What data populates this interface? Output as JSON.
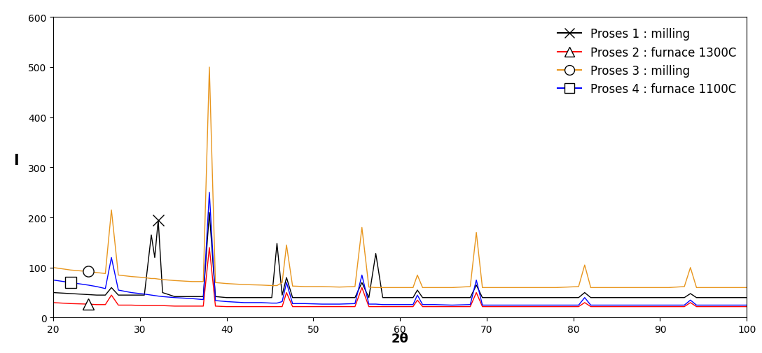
{
  "chart_data": {
    "type": "line",
    "x_label": "2θ",
    "y_label": "I",
    "x": [
      20,
      22,
      24,
      25,
      26,
      26.7,
      27.5,
      29,
      30.5,
      31.3,
      31.7,
      32.1,
      32.6,
      34,
      36,
      37.3,
      38,
      38.7,
      40,
      42,
      44,
      45.2,
      45.8,
      46.4,
      46.9,
      47.6,
      49,
      51,
      53,
      54.8,
      55.6,
      56.4,
      57.2,
      58,
      60,
      61.5,
      62,
      62.6,
      64,
      66,
      68.1,
      68.8,
      69.5,
      72,
      75,
      78,
      80.6,
      81.3,
      82,
      85,
      88,
      91,
      92.8,
      93.5,
      94.2,
      97,
      100
    ],
    "series": [
      {
        "name": "Proses 1 : milling",
        "color": "#000000",
        "marker": "x",
        "values": [
          50,
          48,
          46,
          45,
          45,
          60,
          45,
          45,
          45,
          165,
          120,
          195,
          50,
          42,
          42,
          42,
          210,
          42,
          40,
          40,
          40,
          40,
          148,
          45,
          80,
          40,
          40,
          40,
          40,
          40,
          70,
          40,
          128,
          40,
          40,
          40,
          55,
          40,
          40,
          40,
          40,
          65,
          40,
          40,
          40,
          40,
          40,
          50,
          40,
          40,
          40,
          40,
          40,
          48,
          40,
          40,
          40
        ]
      },
      {
        "name": "Proses 2 : furnace 1300C",
        "color": "#ff0000",
        "marker": "triangle",
        "values": [
          30,
          28,
          27,
          26,
          26,
          45,
          25,
          25,
          24,
          24,
          24,
          24,
          24,
          23,
          23,
          23,
          140,
          23,
          22,
          22,
          22,
          22,
          22,
          22,
          50,
          22,
          22,
          22,
          22,
          22,
          60,
          22,
          22,
          22,
          22,
          22,
          35,
          22,
          22,
          22,
          22,
          50,
          22,
          22,
          22,
          22,
          22,
          30,
          22,
          22,
          22,
          22,
          22,
          30,
          22,
          22,
          22
        ]
      },
      {
        "name": "Proses 3 : milling",
        "color": "#e8961e",
        "marker": "circle",
        "values": [
          100,
          95,
          92,
          90,
          88,
          215,
          85,
          82,
          80,
          78,
          78,
          77,
          76,
          74,
          72,
          72,
          500,
          70,
          68,
          66,
          65,
          64,
          64,
          70,
          145,
          63,
          62,
          62,
          61,
          62,
          180,
          61,
          60,
          60,
          60,
          60,
          85,
          60,
          60,
          60,
          62,
          170,
          60,
          60,
          60,
          60,
          62,
          105,
          60,
          60,
          60,
          60,
          62,
          100,
          60,
          60,
          60
        ]
      },
      {
        "name": "Proses 4 : furnace 1100C",
        "color": "#0000ff",
        "marker": "square",
        "values": [
          75,
          70,
          65,
          62,
          58,
          120,
          55,
          50,
          47,
          45,
          44,
          43,
          42,
          40,
          38,
          36,
          250,
          34,
          32,
          30,
          30,
          29,
          29,
          32,
          70,
          28,
          28,
          27,
          27,
          28,
          85,
          27,
          27,
          26,
          26,
          26,
          45,
          26,
          26,
          25,
          26,
          75,
          25,
          25,
          25,
          25,
          25,
          40,
          25,
          25,
          25,
          25,
          25,
          35,
          25,
          25,
          25
        ]
      }
    ],
    "xlim": [
      20,
      100
    ],
    "xticks": [
      20,
      30,
      40,
      50,
      60,
      70,
      80,
      90,
      100
    ],
    "ylim": [
      0,
      600
    ],
    "yticks": [
      0,
      100,
      200,
      300,
      400,
      500,
      600
    ],
    "grid": false,
    "legend": "upper right"
  }
}
